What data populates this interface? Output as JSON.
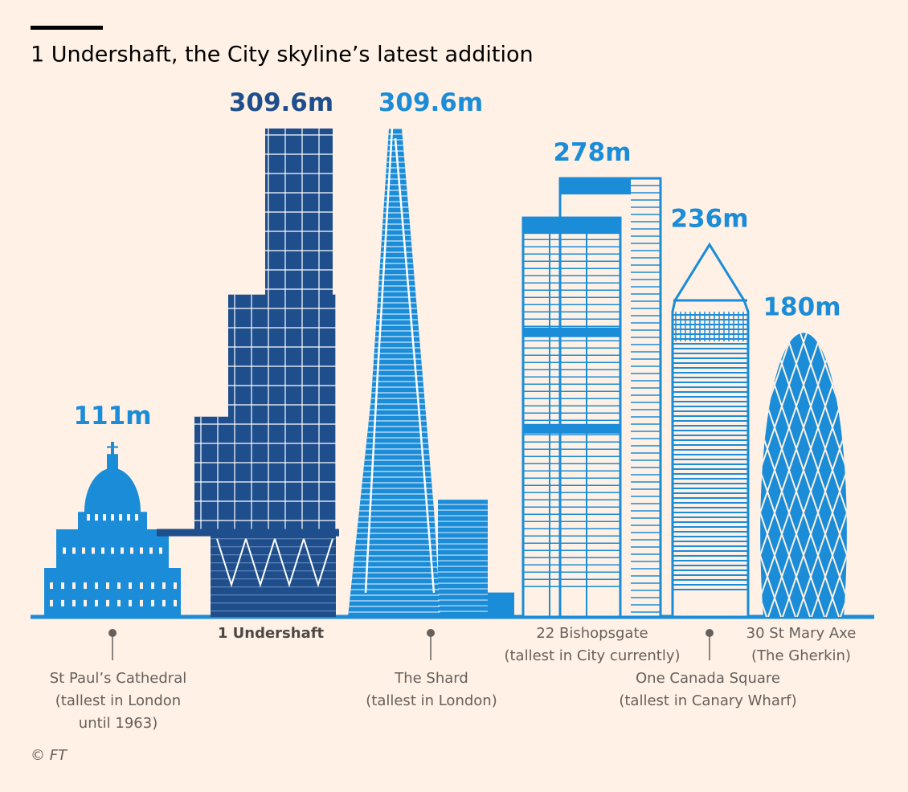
{
  "chart_data": {
    "type": "skyline",
    "title": "1 Undershaft, the City skyline’s latest addition",
    "categories": [
      "St Paul’s Cathedral",
      "1 Undershaft",
      "The Shard",
      "22 Bishopsgate",
      "One Canada Square",
      "30 St Mary Axe"
    ],
    "annotations": [
      "(tallest in London until 1963)",
      null,
      "(tallest in London)",
      "(tallest in City currently)",
      "(tallest in Canary Wharf)",
      "(The Gherkin)"
    ],
    "values": [
      111,
      309.6,
      309.6,
      278,
      236,
      180
    ],
    "value_labels": [
      "111m",
      "309.6m",
      "309.6m",
      "278m",
      "236m",
      "180m"
    ],
    "colors": [
      "#1a8cd8",
      "#1f4e8c",
      "#1a8cd8",
      "#1a8cd8",
      "#1a8cd8",
      "#1a8cd8"
    ],
    "source": "© FT"
  }
}
